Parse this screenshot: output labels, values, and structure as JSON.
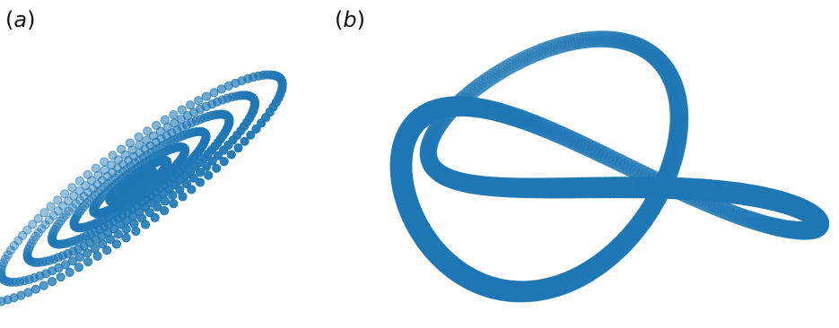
{
  "panels": [
    {
      "id": "a",
      "label_open": "(",
      "label_letter": "a",
      "label_close": ")"
    },
    {
      "id": "b",
      "label_open": "(",
      "label_letter": "b",
      "label_close": ")"
    }
  ],
  "colors": {
    "marker": "#1f77b4",
    "background": "#ffffff"
  }
}
